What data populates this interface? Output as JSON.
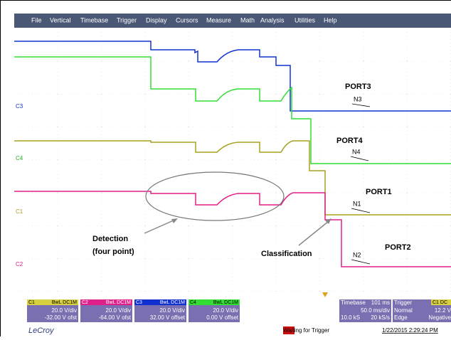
{
  "menu": [
    "File",
    "Vertical",
    "Timebase",
    "Trigger",
    "Display",
    "Cursors",
    "Measure",
    "Math",
    "Analysis",
    "Utilities",
    "Help"
  ],
  "channel_markers": [
    "C3",
    "C4",
    "C1",
    "C2"
  ],
  "annotations": {
    "port3": "PORT3",
    "n3": "N3",
    "port4": "PORT4",
    "n4": "N4",
    "port1": "PORT1",
    "n1": "N1",
    "port2": "PORT2",
    "n2": "N2",
    "detection": "Detection",
    "detection_sub": "(four point)",
    "classification": "Classification"
  },
  "channels": [
    {
      "name": "C1",
      "coupling": "BwL DC1M",
      "vdiv": "20.0 V/div",
      "offset": "-32.00 V ofst"
    },
    {
      "name": "C2",
      "coupling": "BwL DC1M",
      "vdiv": "20.0 V/div",
      "offset": "-64.00 V ofst"
    },
    {
      "name": "C3",
      "coupling": "BwL DC1M",
      "vdiv": "20.0 V/div",
      "offset": "32.00 V offset"
    },
    {
      "name": "C4",
      "coupling": "BwL DC1M",
      "vdiv": "20.0 V/div",
      "offset": "0.00 V offset"
    }
  ],
  "timebase": {
    "label": "Timebase",
    "delay": "101 ms",
    "per_div": "50.0 ms/div",
    "samples": "10.0 kS",
    "rate": "20 kS/s"
  },
  "trigger": {
    "label": "Trigger",
    "source": "C1 DC",
    "mode": "Normal",
    "level": "12.2 V",
    "type": "Edge",
    "slope": "Negative"
  },
  "brand": "LeCroy",
  "status": "Waiting for Trigger",
  "datetime": "1/22/2015 2:29:24 PM"
}
